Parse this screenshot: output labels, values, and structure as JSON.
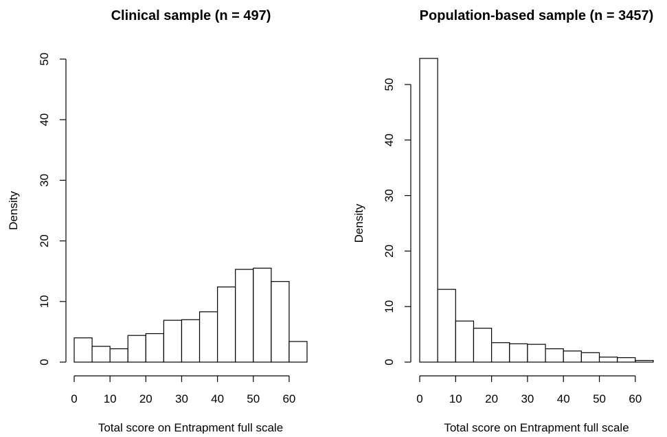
{
  "chart_data": [
    {
      "type": "bar",
      "title": "Clinical sample (n = 497)",
      "xlabel": "Total score on Entrapment full scale",
      "ylabel": "Density",
      "bin_edges": [
        0,
        5,
        10,
        15,
        20,
        25,
        30,
        35,
        40,
        45,
        50,
        55,
        60,
        65
      ],
      "values": [
        4.0,
        2.6,
        2.2,
        4.4,
        4.7,
        6.9,
        7.0,
        8.3,
        12.4,
        15.3,
        15.5,
        13.3,
        3.4
      ],
      "xlim": [
        0,
        65
      ],
      "ylim": [
        0,
        50
      ],
      "xticks": [
        0,
        10,
        20,
        30,
        40,
        50,
        60
      ],
      "yticks": [
        0,
        10,
        20,
        30,
        40,
        50
      ],
      "grid": false,
      "legend": "none",
      "bar_fill": "#ffffff",
      "bar_stroke": "#000000"
    },
    {
      "type": "bar",
      "title": "Population-based sample (n = 3457)",
      "xlabel": "Total score on Entrapment full scale",
      "ylabel": "Density",
      "bin_edges": [
        0,
        5,
        10,
        15,
        20,
        25,
        30,
        35,
        40,
        45,
        50,
        55,
        60,
        65
      ],
      "values": [
        54.7,
        13.1,
        7.4,
        6.1,
        3.5,
        3.3,
        3.2,
        2.4,
        2.0,
        1.7,
        0.9,
        0.8,
        0.3
      ],
      "xlim": [
        0,
        65
      ],
      "ylim": [
        0,
        50
      ],
      "xticks": [
        0,
        10,
        20,
        30,
        40,
        50,
        60
      ],
      "yticks": [
        0,
        10,
        20,
        30,
        40,
        50
      ],
      "grid": false,
      "legend": "none",
      "bar_fill": "#ffffff",
      "bar_stroke": "#000000"
    }
  ]
}
